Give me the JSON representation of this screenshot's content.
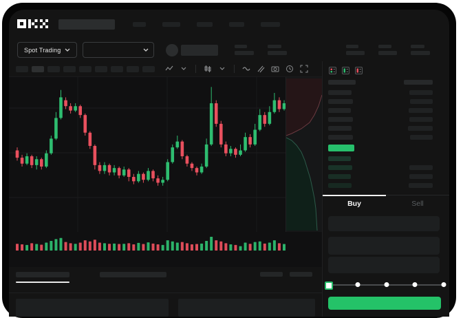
{
  "window": {
    "page_bg": "#ffffff",
    "frame_color": "#060606",
    "app_bg": "#141414"
  },
  "colors": {
    "up_green": "#2ebd70",
    "down_red": "#e9505e",
    "last_price_green": "#27c06c",
    "submit_green": "#24c268",
    "bid_row_green": "#1b3a2d",
    "depth_ask_fill": "#251517",
    "depth_ask_line": "#6b3a41",
    "depth_bid_fill": "#0f2019",
    "depth_bid_line": "#2c5a49",
    "grid_line": "#1c1d1e",
    "placeholder": "#202223",
    "icon_gray": "#8a8c8e"
  },
  "navbar": {
    "logo_label": "OKX",
    "search": {
      "placeholder_width": 82
    },
    "item_widths": [
      19,
      26,
      23,
      22,
      28
    ]
  },
  "ticker": {
    "market_selector_label": "Spot Trading",
    "chevron_icon": "chevron-down",
    "stat_groups": [
      {
        "top_w": 18,
        "bottom_w": 28,
        "gap_before": false
      },
      {
        "top_w": 20,
        "bottom_w": 28,
        "gap_before": false
      },
      {
        "top_w": 18,
        "bottom_w": 27,
        "gap_before": true
      },
      {
        "top_w": 19,
        "bottom_w": 27,
        "gap_before": false
      },
      {
        "top_w": 20,
        "bottom_w": 28,
        "gap_before": false
      }
    ]
  },
  "chart_toolbar": {
    "timeframe_blocks": 9,
    "selected_index": 1,
    "icon_groups": [
      [
        "zigzag-icon",
        "chevron-down-icon"
      ],
      [
        "candles-icon",
        "chevron-down-icon"
      ],
      [
        "wave-icon",
        "trendline-icon",
        "camera-icon",
        "clock-icon",
        "expand-icon"
      ]
    ]
  },
  "chart_data": {
    "type": "candlestick",
    "title": "",
    "note": "no axis labels visible; values are relative price units 0-100 (100 = chart top)",
    "ylim": [
      0,
      100
    ],
    "grid": {
      "h_lines": [
        45,
        110,
        175
      ],
      "v_lines": [
        100,
        230,
        360
      ]
    },
    "candles_ohlc": [
      [
        54,
        56,
        47,
        49
      ],
      [
        49,
        51,
        43,
        45
      ],
      [
        45,
        52,
        44,
        50
      ],
      [
        50,
        51,
        42,
        44
      ],
      [
        44,
        50,
        41,
        48
      ],
      [
        48,
        49,
        41,
        43
      ],
      [
        43,
        54,
        42,
        52
      ],
      [
        52,
        64,
        51,
        62
      ],
      [
        62,
        80,
        61,
        76
      ],
      [
        76,
        95,
        75,
        90
      ],
      [
        88,
        90,
        82,
        84
      ],
      [
        84,
        86,
        79,
        81
      ],
      [
        81,
        86,
        80,
        84
      ],
      [
        84,
        85,
        76,
        78
      ],
      [
        78,
        79,
        64,
        66
      ],
      [
        66,
        67,
        55,
        57
      ],
      [
        57,
        58,
        41,
        44
      ],
      [
        44,
        46,
        38,
        40
      ],
      [
        40,
        46,
        38,
        44
      ],
      [
        44,
        45,
        37,
        39
      ],
      [
        39,
        44,
        37,
        42
      ],
      [
        42,
        43,
        35,
        37
      ],
      [
        37,
        43,
        36,
        41
      ],
      [
        41,
        42,
        33,
        36
      ],
      [
        36,
        38,
        31,
        33
      ],
      [
        33,
        40,
        32,
        38
      ],
      [
        38,
        39,
        32,
        34
      ],
      [
        34,
        42,
        33,
        40
      ],
      [
        40,
        41,
        33,
        35
      ],
      [
        35,
        37,
        30,
        32
      ],
      [
        32,
        36,
        30,
        34
      ],
      [
        34,
        48,
        33,
        46
      ],
      [
        46,
        58,
        45,
        56
      ],
      [
        56,
        64,
        55,
        60
      ],
      [
        60,
        61,
        48,
        50
      ],
      [
        50,
        51,
        43,
        45
      ],
      [
        45,
        46,
        40,
        42
      ],
      [
        42,
        43,
        37,
        39
      ],
      [
        39,
        45,
        38,
        43
      ],
      [
        43,
        62,
        42,
        58
      ],
      [
        58,
        97,
        57,
        86
      ],
      [
        86,
        88,
        70,
        72
      ],
      [
        72,
        74,
        56,
        58
      ],
      [
        58,
        60,
        50,
        52
      ],
      [
        52,
        57,
        50,
        55
      ],
      [
        55,
        56,
        49,
        51
      ],
      [
        51,
        58,
        50,
        54
      ],
      [
        54,
        66,
        53,
        63
      ],
      [
        63,
        65,
        56,
        58
      ],
      [
        58,
        72,
        57,
        68
      ],
      [
        68,
        82,
        67,
        78
      ],
      [
        78,
        80,
        70,
        72
      ],
      [
        72,
        84,
        71,
        80
      ],
      [
        80,
        93,
        79,
        88
      ],
      [
        88,
        90,
        80,
        82
      ],
      [
        82,
        88,
        81,
        86
      ]
    ],
    "volumes": [
      40,
      35,
      30,
      45,
      38,
      32,
      50,
      65,
      80,
      90,
      55,
      45,
      40,
      50,
      70,
      60,
      75,
      50,
      45,
      40,
      42,
      38,
      40,
      45,
      35,
      48,
      38,
      52,
      42,
      35,
      30,
      70,
      60,
      50,
      55,
      45,
      35,
      38,
      42,
      65,
      100,
      70,
      60,
      45,
      35,
      30,
      20,
      50,
      40,
      55,
      60,
      42,
      50,
      70,
      45,
      38
    ]
  },
  "depth_overlay": {
    "asks_fill": "0,2 52,2 52,26 47,42 41,55 34,66 22,75 8,82 0,85",
    "asks_line": "52,26 47,42 41,55 34,66 22,75 8,82 0,85",
    "bids_fill": "0,88 8,92 15,99 22,109 27,121 31,134 35,147 38,161 41,176 43,191 44,207 45,223 0,223",
    "bids_line": "0,88 8,92 15,99 22,109 27,121 31,134 35,147 38,161 41,176 43,191 44,207 45,223"
  },
  "orderbook": {
    "view_icons": [
      "book-combined-icon",
      "book-bids-icon",
      "book-asks-icon"
    ],
    "header": {
      "left_w": 40,
      "right_w": 42
    },
    "asks": [
      {
        "price_w": 34,
        "amount_w": 34
      },
      {
        "price_w": 36,
        "amount_w": 33
      },
      {
        "price_w": 33,
        "amount_w": 35
      },
      {
        "price_w": 36,
        "amount_w": 34
      },
      {
        "price_w": 34,
        "amount_w": 36
      },
      {
        "price_w": 36,
        "amount_w": 33
      }
    ],
    "last_price_bar_w": 38,
    "bids": [
      {
        "price_w": 33,
        "amount_w": 0
      },
      {
        "price_w": 35,
        "amount_w": 34
      },
      {
        "price_w": 33,
        "amount_w": 34
      },
      {
        "price_w": 34,
        "amount_w": 35
      }
    ]
  },
  "trade_form": {
    "tabs": [
      {
        "label": "Buy",
        "active": true
      },
      {
        "label": "Sell",
        "active": false
      }
    ],
    "field_heights": [
      22,
      26,
      24
    ],
    "slider": {
      "stops": 5,
      "active_stop": 0
    },
    "submit_label": ""
  },
  "bottom": {
    "tabs": [
      {
        "w": 78,
        "active": true
      },
      {
        "w": 97,
        "active": false
      }
    ],
    "right_bar_widths": [
      33,
      33
    ],
    "panel_widths": [
      222,
      0
    ]
  }
}
